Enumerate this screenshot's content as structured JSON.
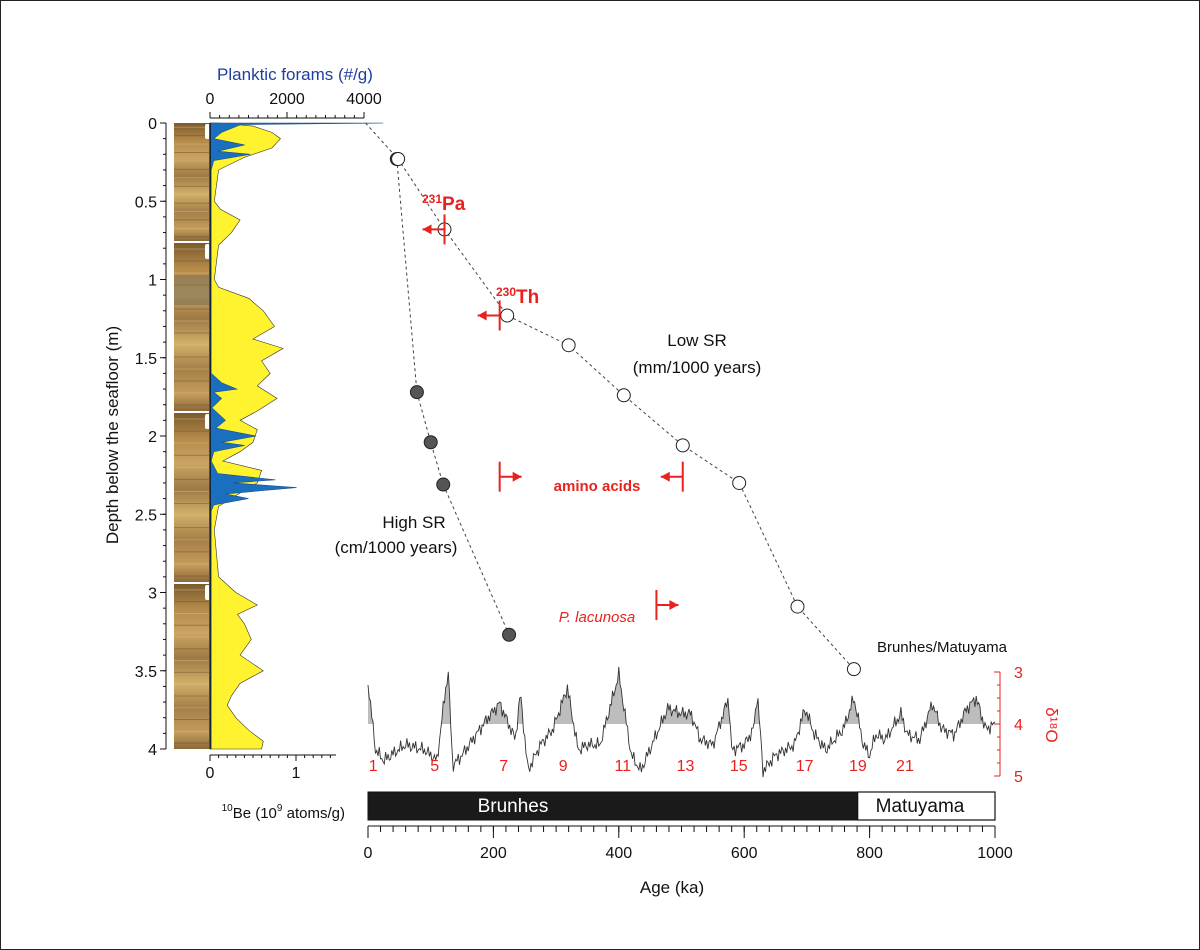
{
  "chart_data": {
    "type": "scatter",
    "colors": {
      "forams": "#1b6fbf",
      "be10": "#fff22e",
      "red": "#e8231f",
      "dark_point": "#555555",
      "shade": "#bdbdbd"
    },
    "depth_axis": {
      "title": "Depth below the seafloor (m)",
      "range": [
        0,
        4
      ],
      "ticks": [
        "0",
        "0.5",
        "1",
        "1.5",
        "2",
        "2.5",
        "3",
        "3.5",
        "4"
      ]
    },
    "forams_axis": {
      "title": "Planktic forams (#/g)",
      "range": [
        0,
        4000
      ],
      "ticks": [
        "0",
        "2000",
        "4000"
      ]
    },
    "be10_axis": {
      "title_pre": "10",
      "title_post": "Be (10",
      "title_exp": "9",
      "title_end": " atoms/g)",
      "range": [
        0,
        1.5
      ],
      "ticks": [
        "0",
        "1"
      ]
    },
    "age_axis": {
      "title": "Age (ka)",
      "range": [
        0,
        1000
      ],
      "ticks": [
        "0",
        "200",
        "400",
        "600",
        "800",
        "1000"
      ]
    },
    "d18o_axis": {
      "title": "δ¹⁸O",
      "range": [
        3,
        5
      ],
      "ticks": [
        "3",
        "4",
        "5"
      ]
    },
    "polarity": {
      "brunhes": "Brunhes",
      "matuyama": "Matuyama",
      "boundary_ka": 781
    },
    "series": [
      {
        "name": "High SR",
        "subtitle": "(cm/1000 years)",
        "marker": "filled",
        "points": [
          [
            46,
            0.23
          ],
          [
            78,
            1.72
          ],
          [
            100,
            2.04
          ],
          [
            120,
            2.31
          ],
          [
            225,
            3.27
          ]
        ]
      },
      {
        "name": "Low SR",
        "subtitle": "(mm/1000 years)",
        "marker": "open",
        "points": [
          [
            -4,
            0.0
          ],
          [
            48,
            0.23
          ],
          [
            122,
            0.68
          ],
          [
            222,
            1.23
          ],
          [
            320,
            1.42
          ],
          [
            408,
            1.74
          ],
          [
            502,
            2.06
          ],
          [
            592,
            2.3
          ],
          [
            685,
            3.09
          ],
          [
            775,
            3.49
          ]
        ]
      }
    ],
    "constraints": [
      {
        "label_sup": "231",
        "label": "Pa",
        "age": 122,
        "depth": 0.68,
        "direction": "left"
      },
      {
        "label_sup": "230",
        "label": "Th",
        "age": 210,
        "depth": 1.23,
        "direction": "left"
      },
      {
        "label": "amino acids",
        "age_min": 210,
        "age_max": 502,
        "depth": 2.26
      },
      {
        "label": "P. lacunosa",
        "age": 460,
        "depth": 3.08,
        "direction": "right"
      }
    ],
    "annotations": {
      "brunhes_matuyama": "Brunhes/Matuyama"
    },
    "mis_stages": [
      {
        "label": "1",
        "age": 2
      },
      {
        "label": "5",
        "age": 100
      },
      {
        "label": "7",
        "age": 210
      },
      {
        "label": "9",
        "age": 305
      },
      {
        "label": "11",
        "age": 400
      },
      {
        "label": "13",
        "age": 500
      },
      {
        "label": "15",
        "age": 585
      },
      {
        "label": "17",
        "age": 690
      },
      {
        "label": "19",
        "age": 775
      },
      {
        "label": "21",
        "age": 850
      }
    ],
    "d18o_anchors": [
      [
        0,
        3.2
      ],
      [
        12,
        4.5
      ],
      [
        25,
        4.7
      ],
      [
        60,
        4.4
      ],
      [
        90,
        4.5
      ],
      [
        110,
        4.7
      ],
      [
        123,
        3.4
      ],
      [
        128,
        3.0
      ],
      [
        135,
        4.8
      ],
      [
        150,
        4.6
      ],
      [
        190,
        3.9
      ],
      [
        210,
        3.6
      ],
      [
        235,
        4.3
      ],
      [
        243,
        3.4
      ],
      [
        255,
        4.9
      ],
      [
        275,
        4.4
      ],
      [
        295,
        4.1
      ],
      [
        318,
        3.3
      ],
      [
        335,
        4.5
      ],
      [
        350,
        4.4
      ],
      [
        370,
        4.4
      ],
      [
        400,
        3.05
      ],
      [
        420,
        4.6
      ],
      [
        435,
        4.9
      ],
      [
        460,
        4.2
      ],
      [
        478,
        3.7
      ],
      [
        500,
        3.8
      ],
      [
        515,
        3.8
      ],
      [
        530,
        4.3
      ],
      [
        550,
        4.4
      ],
      [
        575,
        3.5
      ],
      [
        580,
        4.5
      ],
      [
        600,
        4.4
      ],
      [
        615,
        4.1
      ],
      [
        621,
        3.4
      ],
      [
        630,
        4.9
      ],
      [
        650,
        4.6
      ],
      [
        680,
        4.4
      ],
      [
        697,
        3.7
      ],
      [
        712,
        4.2
      ],
      [
        730,
        4.5
      ],
      [
        758,
        4.1
      ],
      [
        775,
        3.5
      ],
      [
        790,
        4.4
      ],
      [
        800,
        4.6
      ],
      [
        810,
        4.2
      ],
      [
        825,
        4.3
      ],
      [
        850,
        3.8
      ],
      [
        860,
        4.2
      ],
      [
        880,
        4.3
      ],
      [
        900,
        3.6
      ],
      [
        915,
        4.1
      ],
      [
        935,
        4.2
      ],
      [
        955,
        3.7
      ],
      [
        970,
        3.5
      ],
      [
        985,
        4.1
      ],
      [
        1000,
        4.0
      ]
    ],
    "be10_profile": [
      [
        0,
        0.1
      ],
      [
        0.02,
        0.5
      ],
      [
        0.06,
        0.72
      ],
      [
        0.1,
        0.82
      ],
      [
        0.16,
        0.72
      ],
      [
        0.22,
        0.4
      ],
      [
        0.3,
        0.1
      ],
      [
        0.5,
        0.05
      ],
      [
        0.55,
        0.12
      ],
      [
        0.62,
        0.35
      ],
      [
        0.7,
        0.25
      ],
      [
        0.78,
        0.1
      ],
      [
        1.0,
        0.05
      ],
      [
        1.05,
        0.1
      ],
      [
        1.12,
        0.45
      ],
      [
        1.2,
        0.62
      ],
      [
        1.3,
        0.75
      ],
      [
        1.38,
        0.5
      ],
      [
        1.44,
        0.85
      ],
      [
        1.52,
        0.6
      ],
      [
        1.6,
        0.7
      ],
      [
        1.68,
        0.55
      ],
      [
        1.76,
        0.78
      ],
      [
        1.84,
        0.55
      ],
      [
        1.9,
        0.35
      ],
      [
        1.96,
        0.55
      ],
      [
        2.04,
        0.5
      ],
      [
        2.1,
        0.35
      ],
      [
        2.16,
        0.15
      ],
      [
        2.22,
        0.6
      ],
      [
        2.3,
        0.55
      ],
      [
        2.38,
        0.3
      ],
      [
        2.45,
        0.1
      ],
      [
        2.6,
        0.05
      ],
      [
        2.9,
        0.1
      ],
      [
        3.0,
        0.3
      ],
      [
        3.08,
        0.55
      ],
      [
        3.14,
        0.32
      ],
      [
        3.2,
        0.4
      ],
      [
        3.3,
        0.48
      ],
      [
        3.4,
        0.35
      ],
      [
        3.5,
        0.62
      ],
      [
        3.58,
        0.35
      ],
      [
        3.66,
        0.25
      ],
      [
        3.72,
        0.2
      ],
      [
        3.8,
        0.3
      ],
      [
        3.88,
        0.45
      ],
      [
        3.95,
        0.62
      ],
      [
        4.0,
        0.6
      ]
    ],
    "forams_profile": [
      [
        0,
        4500
      ],
      [
        0.01,
        800
      ],
      [
        0.06,
        300
      ],
      [
        0.1,
        100
      ],
      [
        0.14,
        900
      ],
      [
        0.18,
        200
      ],
      [
        0.2,
        1050
      ],
      [
        0.24,
        100
      ],
      [
        0.3,
        30
      ],
      [
        1.6,
        30
      ],
      [
        1.66,
        300
      ],
      [
        1.7,
        700
      ],
      [
        1.72,
        100
      ],
      [
        1.76,
        300
      ],
      [
        1.82,
        50
      ],
      [
        1.9,
        400
      ],
      [
        1.95,
        150
      ],
      [
        2.0,
        1200
      ],
      [
        2.04,
        300
      ],
      [
        2.06,
        900
      ],
      [
        2.1,
        100
      ],
      [
        2.16,
        30
      ],
      [
        2.24,
        200
      ],
      [
        2.28,
        1700
      ],
      [
        2.3,
        600
      ],
      [
        2.33,
        2250
      ],
      [
        2.37,
        400
      ],
      [
        2.4,
        1000
      ],
      [
        2.44,
        100
      ],
      [
        2.48,
        30
      ],
      [
        4.0,
        30
      ]
    ]
  }
}
